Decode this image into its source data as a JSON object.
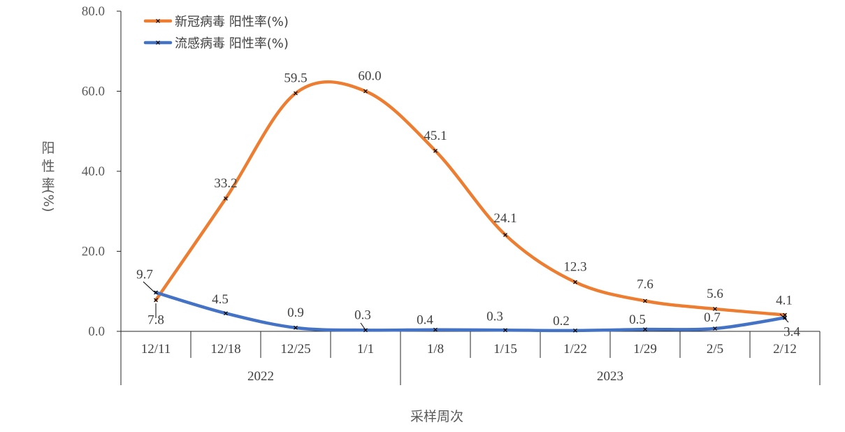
{
  "chart_data": {
    "type": "line",
    "title": "",
    "xlabel": "采样周次",
    "ylabel": "阳性率(%)",
    "ylabel_parts": [
      "阳",
      "性",
      "率",
      "(%)"
    ],
    "ylim": [
      0,
      80
    ],
    "yticks": [
      "0.0",
      "20.0",
      "40.0",
      "60.0",
      "80.0"
    ],
    "ytick_values": [
      0,
      20,
      40,
      60,
      80
    ],
    "categories": [
      "12/11",
      "12/18",
      "12/25",
      "1/1",
      "1/8",
      "1/15",
      "1/22",
      "1/29",
      "2/5",
      "2/12"
    ],
    "groups": [
      {
        "label": "2022",
        "span": 4
      },
      {
        "label": "2023",
        "span": 6
      }
    ],
    "series": [
      {
        "name": "新冠病毒 阳性率(%)",
        "color": "#ED7D31",
        "values": [
          7.8,
          33.2,
          59.5,
          60.0,
          45.1,
          24.1,
          12.3,
          7.6,
          5.6,
          4.1
        ],
        "labels": [
          "7.8",
          "33.2",
          "59.5",
          "60.0",
          "45.1",
          "24.1",
          "12.3",
          "7.6",
          "5.6",
          "4.1"
        ]
      },
      {
        "name": "流感病毒 阳性率(%)",
        "color": "#4472C4",
        "values": [
          9.7,
          4.5,
          0.9,
          0.3,
          0.4,
          0.3,
          0.2,
          0.5,
          0.7,
          3.4
        ],
        "labels": [
          "9.7",
          "4.5",
          "0.9",
          "0.3",
          "0.4",
          "0.3",
          "0.2",
          "0.5",
          "0.7",
          "3.4"
        ]
      }
    ],
    "grid": false,
    "legend_position": "top-left",
    "smooth": true,
    "marker": "x"
  }
}
